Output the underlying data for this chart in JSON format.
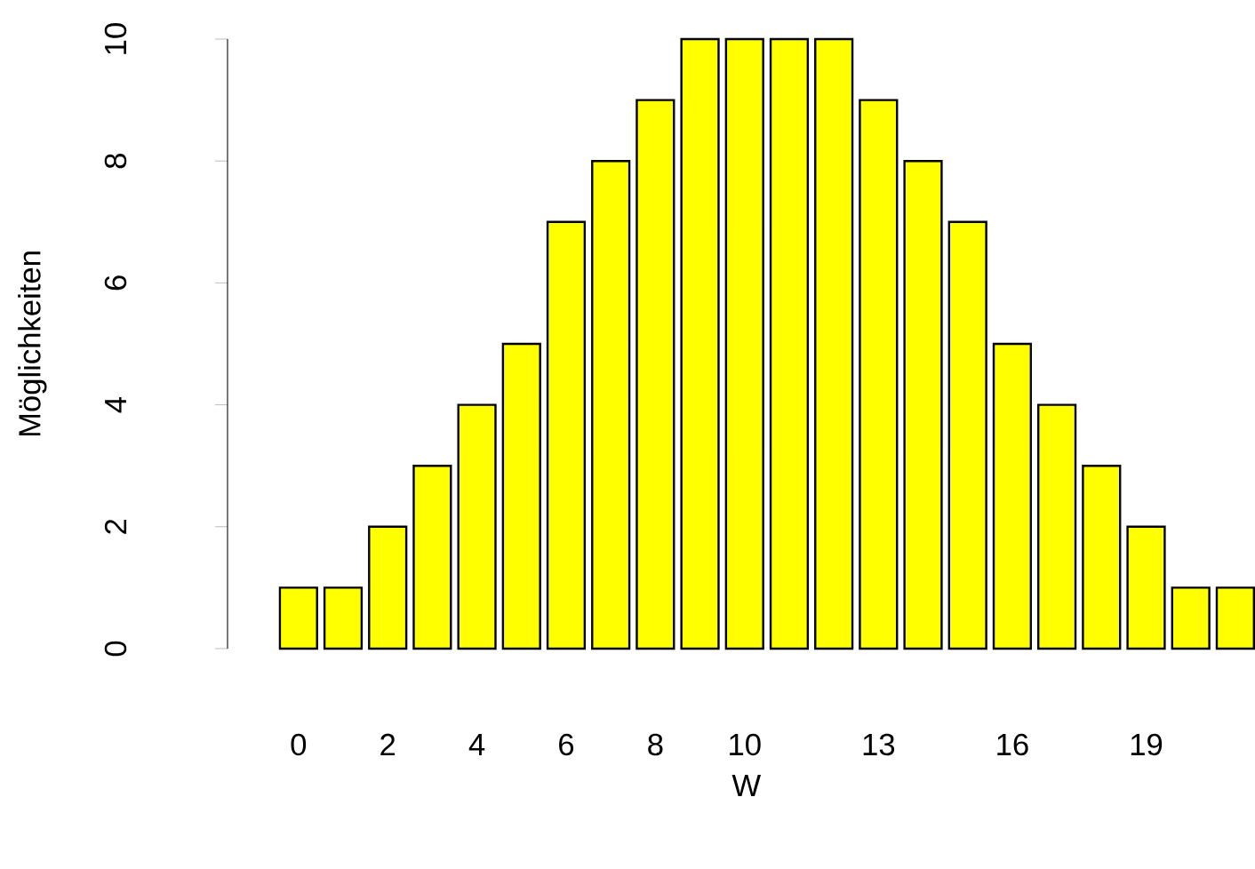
{
  "chart_data": {
    "type": "bar",
    "xlabel": "W",
    "ylabel": "Möglichkeiten",
    "categories": [
      "0",
      null,
      "2",
      null,
      "4",
      null,
      "6",
      null,
      "8",
      null,
      "10",
      null,
      null,
      "13",
      null,
      null,
      "16",
      null,
      null,
      "19",
      null,
      null
    ],
    "values": [
      1,
      1,
      2,
      3,
      4,
      5,
      7,
      8,
      9,
      10,
      10,
      10,
      10,
      9,
      8,
      7,
      5,
      4,
      3,
      2,
      1,
      1
    ],
    "color": "#ffff00",
    "ylim": [
      0,
      10
    ],
    "yticks": [
      0,
      2,
      4,
      6,
      8,
      10
    ]
  }
}
